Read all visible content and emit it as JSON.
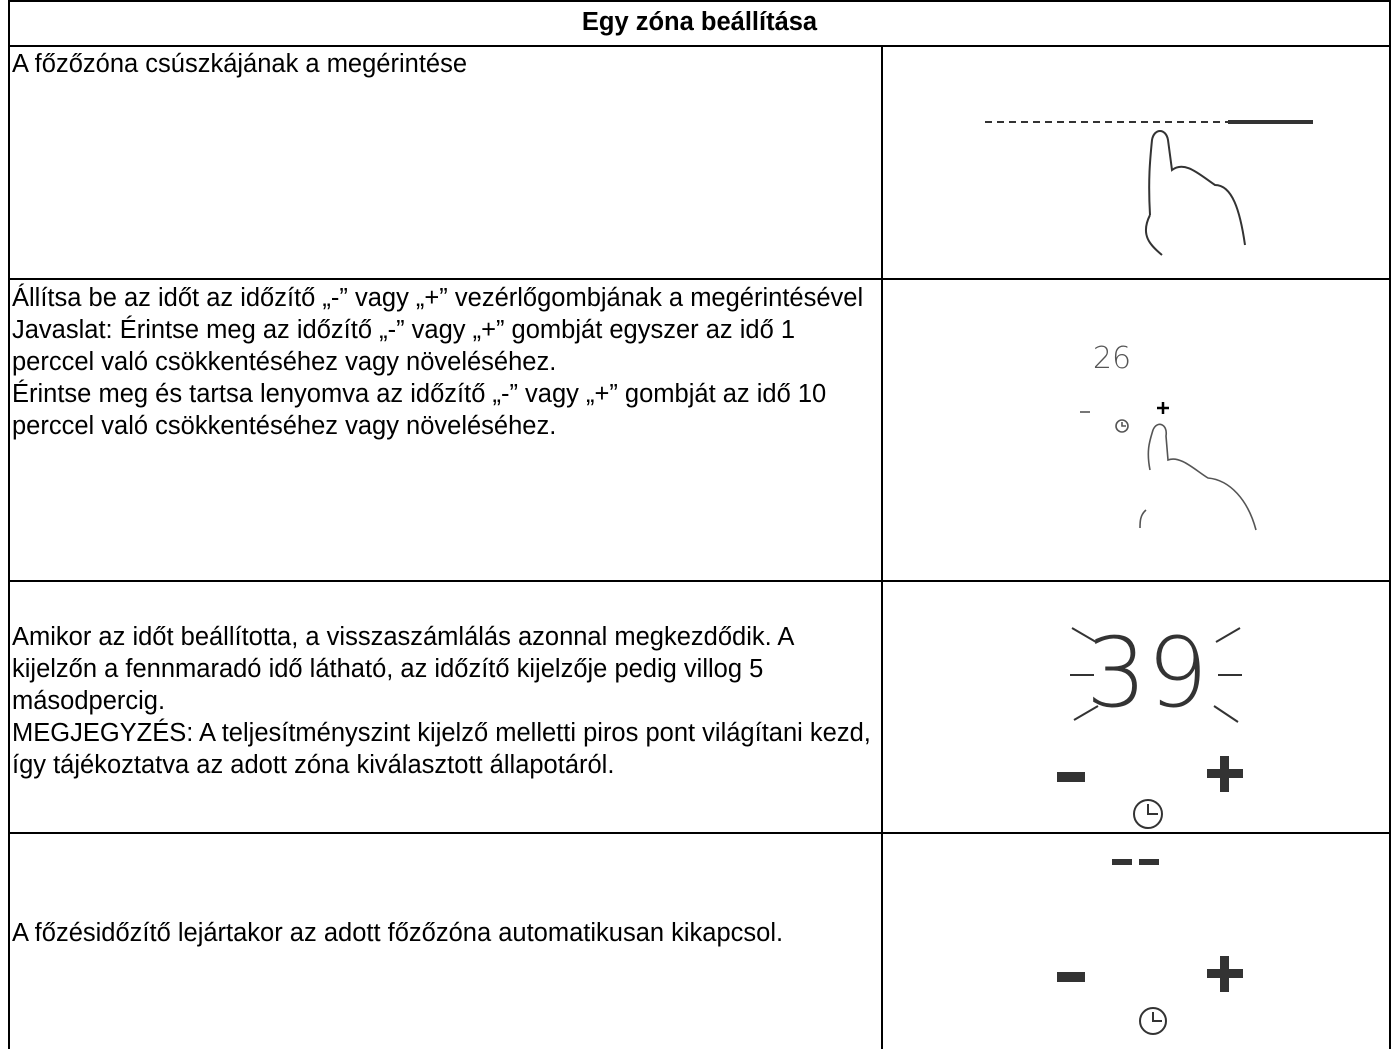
{
  "header": {
    "title": "Egy zóna beállítása"
  },
  "rows": [
    {
      "paragraphs": [
        "A főzőzóna csúszkájának a megérintése"
      ]
    },
    {
      "paragraphs": [
        "Állítsa be az időt az időzítő „-” vagy „+” vezérlőgombjának a megérintésével",
        "Javaslat: Érintse meg az időzítő „-” vagy „+” gombját egyszer az idő 1 perccel való csökkentéséhez vagy növeléséhez.",
        "Érintse meg és tartsa lenyomva az időzítő „-” vagy „+” gombját az idő 10 perccel való csökkentéséhez vagy növeléséhez."
      ],
      "display": "26"
    },
    {
      "paragraphs": [
        "Amikor az időt beállította, a visszaszámlálás azonnal megkezdődik. A kijelzőn a fennmaradó idő látható, az időzítő kijelzője pedig villog 5 másodpercig.",
        "MEGJEGYZÉS: A teljesítményszint kijelző melletti piros pont világítani kezd, így tájékoztatva az adott zóna kiválasztott állapotáról."
      ],
      "display": "39"
    },
    {
      "paragraphs": [
        "A főzésidőzítő lejártakor az adott főzőzóna automatikusan kikapcsol."
      ]
    }
  ]
}
